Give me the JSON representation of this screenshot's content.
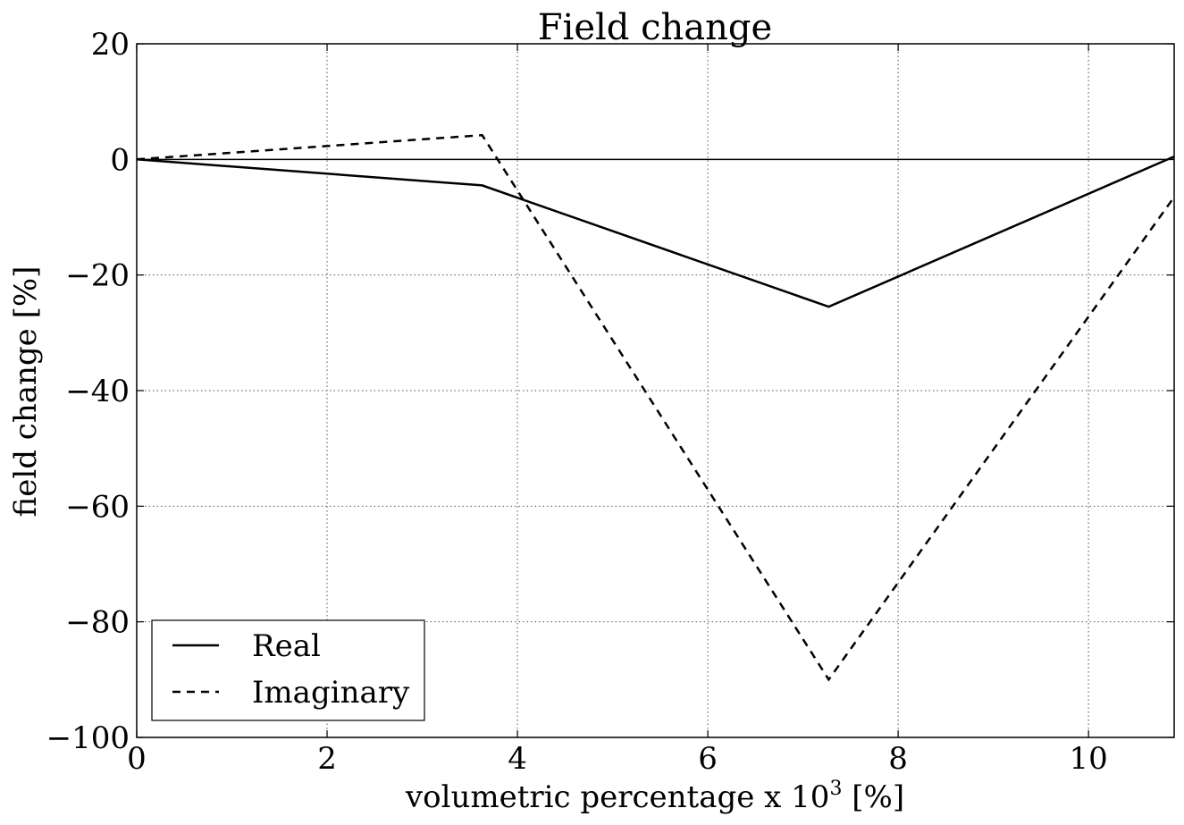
{
  "chart_data": {
    "type": "line",
    "title": "Field change",
    "xlabel": "volumetric percentage x 10³ [%]",
    "xlabel_main": "volumetric percentage x 10",
    "xlabel_exp": "3",
    "xlabel_unit": " [%]",
    "ylabel": "field change [%]",
    "xlim": [
      0,
      10.9
    ],
    "ylim": [
      -100,
      20
    ],
    "xticks": [
      0,
      2,
      4,
      6,
      8,
      10
    ],
    "yticks": [
      20,
      0,
      -20,
      -40,
      -60,
      -80,
      -100
    ],
    "xtick_labels": [
      "0",
      "2",
      "4",
      "6",
      "8",
      "10"
    ],
    "ytick_labels": [
      "20",
      "0",
      "−20",
      "−40",
      "−60",
      "−80",
      "−100"
    ],
    "grid": true,
    "legend_position": "lower-left",
    "series": [
      {
        "name": "Real",
        "style": "solid",
        "color": "#000000",
        "x": [
          0,
          3.63,
          7.27,
          10.9
        ],
        "y": [
          0,
          -4.5,
          -25.5,
          0.5
        ]
      },
      {
        "name": "Imaginary",
        "style": "dashed",
        "color": "#000000",
        "x": [
          0,
          3.63,
          7.27,
          10.9
        ],
        "y": [
          0,
          4.2,
          -90,
          -6.5
        ]
      }
    ]
  }
}
